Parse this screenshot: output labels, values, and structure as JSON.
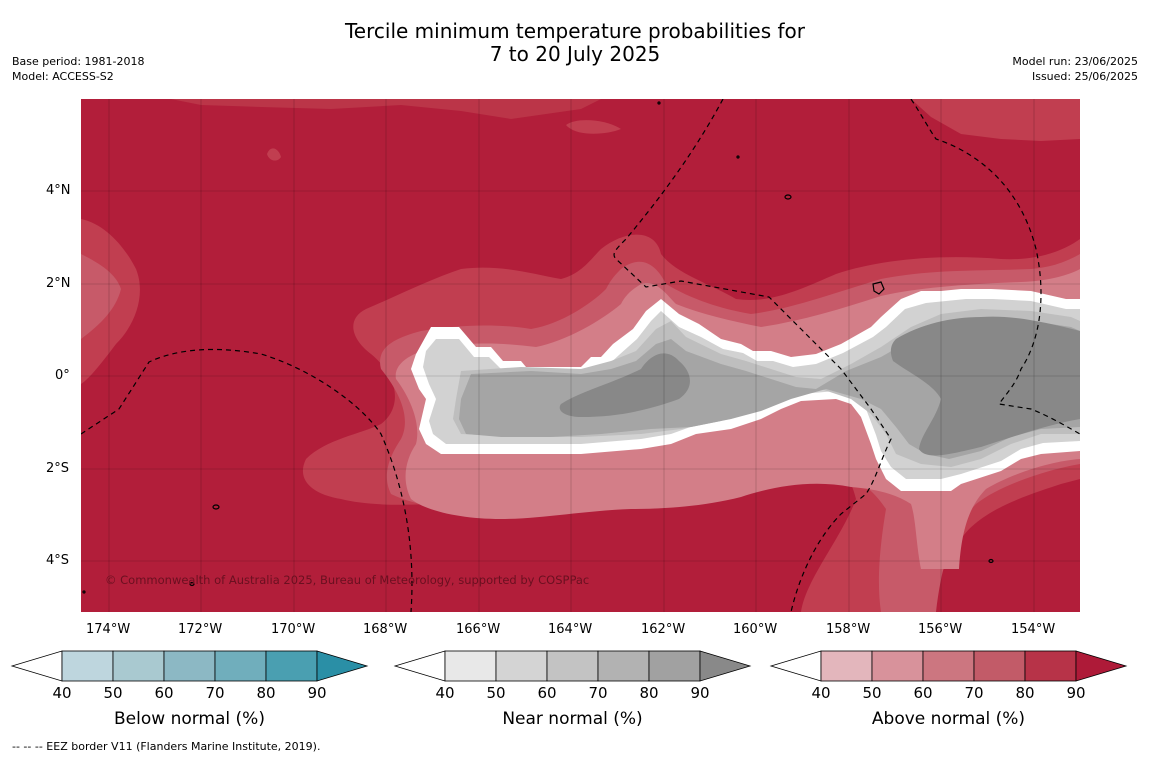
{
  "title": {
    "line1": "Tercile minimum temperature probabilities for",
    "line2": "7 to 20 July 2025"
  },
  "meta_left": {
    "base_period": "Base period: 1981-2018",
    "model": "Model: ACCESS-S2"
  },
  "meta_right": {
    "model_run": "Model run: 23/06/2025",
    "issued": "Issued: 25/06/2025"
  },
  "map": {
    "latitude_labels": [
      "4°N",
      "2°N",
      "0°",
      "2°S",
      "4°S"
    ],
    "longitude_labels": [
      "174°W",
      "172°W",
      "170°W",
      "168°W",
      "166°W",
      "164°W",
      "162°W",
      "160°W",
      "158°W",
      "156°W",
      "154°W"
    ],
    "copyright": "© Commonwealth of Australia 2025, Bureau of Meteorology, supported by COSPPac",
    "colors": {
      "above_90": "#b21e3a",
      "above_80": "#c13e50",
      "above_70": "#c75a69",
      "above_60": "#d37e88",
      "near_90": "#888888",
      "near_80": "#a5a5a5",
      "near_70": "#bebebe",
      "near_60": "#d2d2d2"
    }
  },
  "colorbars": [
    {
      "label": "Below normal (%)",
      "ticks": [
        "40",
        "50",
        "60",
        "70",
        "80",
        "90"
      ],
      "colors": [
        "#bed6de",
        "#a9c9d0",
        "#8cb8c4",
        "#70aebc",
        "#4a9fb1",
        "#2a8fa6"
      ]
    },
    {
      "label": "Near normal (%)",
      "ticks": [
        "40",
        "50",
        "60",
        "70",
        "80",
        "90"
      ],
      "colors": [
        "#e8e8e8",
        "#d4d4d4",
        "#c3c3c3",
        "#b2b2b2",
        "#a1a1a1",
        "#898989"
      ]
    },
    {
      "label": "Above normal (%)",
      "ticks": [
        "40",
        "50",
        "60",
        "70",
        "80",
        "90"
      ],
      "colors": [
        "#e3b6bc",
        "#d8929b",
        "#cc7680",
        "#c25b68",
        "#b73348",
        "#ae1a38"
      ]
    }
  ],
  "footnote": "--  --  -- EEZ border V11 (Flanders Marine Institute, 2019)."
}
